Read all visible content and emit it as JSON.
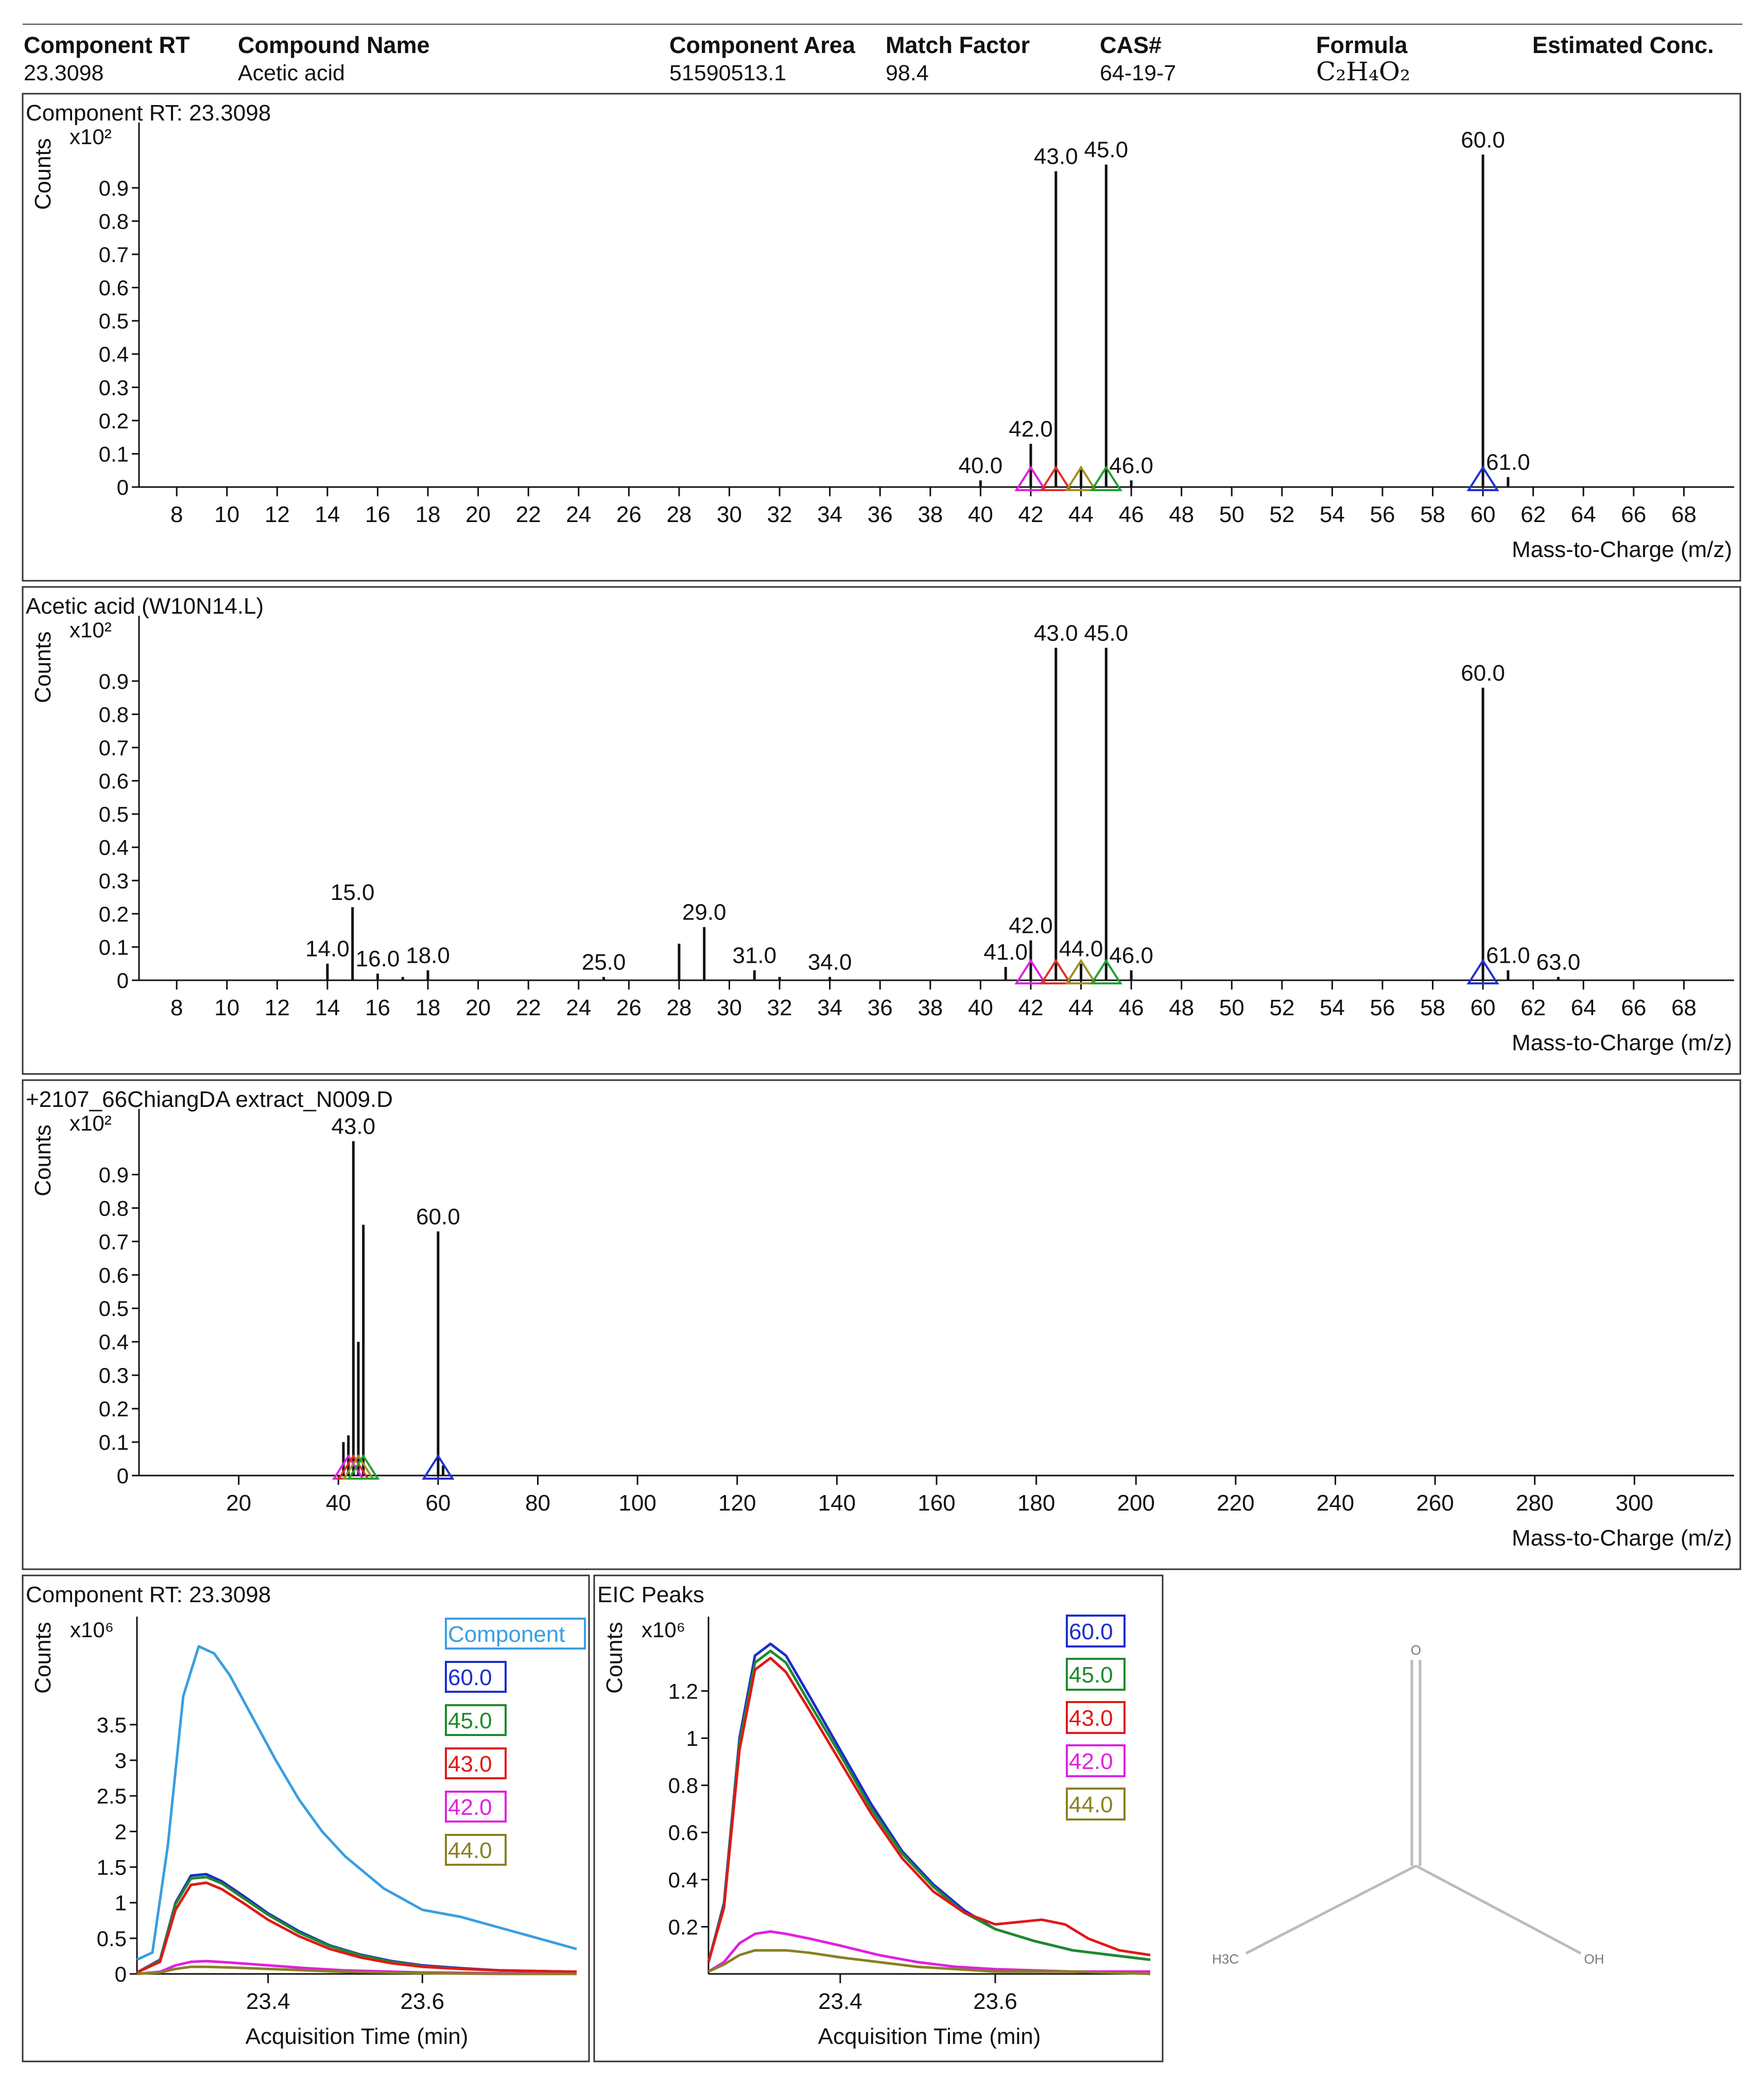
{
  "header": {
    "columns": [
      {
        "label": "Component RT",
        "value": "23.3098"
      },
      {
        "label": "Compound Name",
        "value": "Acetic acid"
      },
      {
        "label": "Component Area",
        "value": "51590513.1"
      },
      {
        "label": "Match Factor",
        "value": "98.4"
      },
      {
        "label": "CAS#",
        "value": "64-19-7"
      },
      {
        "label": "Formula",
        "value": "C₂H₄O₂"
      },
      {
        "label": "Estimated Conc.",
        "value": ""
      }
    ]
  },
  "chart_data": [
    {
      "type": "bar",
      "title": "Component RT: 23.3098",
      "xlabel": "Mass-to-Charge (m/z)",
      "ylabel": "Counts",
      "yscale_label": "x10²",
      "xlim": [
        6.5,
        70
      ],
      "ylim": [
        0,
        1.05
      ],
      "xticks": [
        8,
        10,
        12,
        14,
        16,
        18,
        20,
        22,
        24,
        26,
        28,
        30,
        32,
        34,
        36,
        38,
        40,
        42,
        44,
        46,
        48,
        50,
        52,
        54,
        56,
        58,
        60,
        62,
        64,
        66,
        68
      ],
      "yticks": [
        "0",
        "0.1",
        "0.2",
        "0.3",
        "0.4",
        "0.5",
        "0.6",
        "0.7",
        "0.8",
        "0.9"
      ],
      "peaks": [
        {
          "mz": 40.0,
          "value": 0.02,
          "label": "40.0"
        },
        {
          "mz": 42.0,
          "value": 0.13,
          "label": "42.0"
        },
        {
          "mz": 43.0,
          "value": 0.95,
          "label": "43.0"
        },
        {
          "mz": 44.0,
          "value": 0.06,
          "label": ""
        },
        {
          "mz": 45.0,
          "value": 0.97,
          "label": "45.0"
        },
        {
          "mz": 46.0,
          "value": 0.02,
          "label": "46.0"
        },
        {
          "mz": 60.0,
          "value": 1.0,
          "label": "60.0"
        },
        {
          "mz": 61.0,
          "value": 0.03,
          "label": "61.0"
        }
      ],
      "markers": [
        {
          "mz": 42,
          "color": "#e020e0"
        },
        {
          "mz": 43,
          "color": "#e03020"
        },
        {
          "mz": 44,
          "color": "#a09020"
        },
        {
          "mz": 45,
          "color": "#20a030"
        },
        {
          "mz": 60,
          "color": "#2030d0"
        }
      ]
    },
    {
      "type": "bar",
      "title": "Acetic acid (W10N14.L)",
      "xlabel": "Mass-to-Charge (m/z)",
      "ylabel": "Counts",
      "yscale_label": "x10²",
      "xlim": [
        6.5,
        70
      ],
      "ylim": [
        0,
        1.05
      ],
      "xticks": [
        8,
        10,
        12,
        14,
        16,
        18,
        20,
        22,
        24,
        26,
        28,
        30,
        32,
        34,
        36,
        38,
        40,
        42,
        44,
        46,
        48,
        50,
        52,
        54,
        56,
        58,
        60,
        62,
        64,
        66,
        68
      ],
      "yticks": [
        "0",
        "0.1",
        "0.2",
        "0.3",
        "0.4",
        "0.5",
        "0.6",
        "0.7",
        "0.8",
        "0.9"
      ],
      "peaks": [
        {
          "mz": 14.0,
          "value": 0.05,
          "label": "14.0"
        },
        {
          "mz": 15.0,
          "value": 0.22,
          "label": "15.0"
        },
        {
          "mz": 16.0,
          "value": 0.02,
          "label": "16.0"
        },
        {
          "mz": 17.0,
          "value": 0.01,
          "label": ""
        },
        {
          "mz": 18.0,
          "value": 0.03,
          "label": "18.0"
        },
        {
          "mz": 25.0,
          "value": 0.01,
          "label": "25.0"
        },
        {
          "mz": 28.0,
          "value": 0.11,
          "label": ""
        },
        {
          "mz": 29.0,
          "value": 0.16,
          "label": "29.0"
        },
        {
          "mz": 31.0,
          "value": 0.03,
          "label": "31.0"
        },
        {
          "mz": 32.0,
          "value": 0.01,
          "label": ""
        },
        {
          "mz": 34.0,
          "value": 0.01,
          "label": "34.0"
        },
        {
          "mz": 41.0,
          "value": 0.04,
          "label": "41.0"
        },
        {
          "mz": 42.0,
          "value": 0.12,
          "label": "42.0"
        },
        {
          "mz": 43.0,
          "value": 1.0,
          "label": "43.0"
        },
        {
          "mz": 44.0,
          "value": 0.05,
          "label": "44.0"
        },
        {
          "mz": 45.0,
          "value": 1.0,
          "label": "45.0"
        },
        {
          "mz": 46.0,
          "value": 0.03,
          "label": "46.0"
        },
        {
          "mz": 60.0,
          "value": 0.88,
          "label": "60.0"
        },
        {
          "mz": 61.0,
          "value": 0.03,
          "label": "61.0"
        },
        {
          "mz": 63.0,
          "value": 0.01,
          "label": "63.0"
        }
      ],
      "markers": [
        {
          "mz": 42,
          "color": "#e020e0"
        },
        {
          "mz": 43,
          "color": "#e03020"
        },
        {
          "mz": 44,
          "color": "#a09020"
        },
        {
          "mz": 45,
          "color": "#20a030"
        },
        {
          "mz": 60,
          "color": "#2030d0"
        }
      ]
    },
    {
      "type": "bar",
      "title": "+2107_66ChiangDA extract_N009.D",
      "xlabel": "Mass-to-Charge (m/z)",
      "ylabel": "Counts",
      "yscale_label": "x10²",
      "xlim": [
        0,
        320
      ],
      "ylim": [
        0,
        1.05
      ],
      "xticks": [
        20,
        40,
        60,
        80,
        100,
        120,
        140,
        160,
        180,
        200,
        220,
        240,
        260,
        280,
        300
      ],
      "yticks": [
        "0",
        "0.1",
        "0.2",
        "0.3",
        "0.4",
        "0.5",
        "0.6",
        "0.7",
        "0.8",
        "0.9"
      ],
      "peaks": [
        {
          "mz": 41.0,
          "value": 0.1,
          "label": ""
        },
        {
          "mz": 42.0,
          "value": 0.12,
          "label": ""
        },
        {
          "mz": 43.0,
          "value": 1.0,
          "label": "43.0"
        },
        {
          "mz": 44.0,
          "value": 0.4,
          "label": ""
        },
        {
          "mz": 45.0,
          "value": 0.75,
          "label": ""
        },
        {
          "mz": 60.0,
          "value": 0.73,
          "label": "60.0"
        },
        {
          "mz": 61.0,
          "value": 0.03,
          "label": ""
        }
      ],
      "markers": [
        {
          "mz": 42,
          "color": "#e020e0"
        },
        {
          "mz": 43,
          "color": "#e03020"
        },
        {
          "mz": 44,
          "color": "#a09020"
        },
        {
          "mz": 45,
          "color": "#20a030"
        },
        {
          "mz": 60,
          "color": "#2030d0"
        }
      ]
    },
    {
      "type": "line",
      "title": "Component RT: 23.3098",
      "xlabel": "Acquisition Time (min)",
      "ylabel": "Counts",
      "yscale_label": "x10⁶",
      "xlim": [
        23.23,
        23.8
      ],
      "ylim": [
        0,
        4.8
      ],
      "xticks": [
        23.4,
        23.6
      ],
      "yticks": [
        0,
        0.5,
        1,
        1.5,
        2,
        2.5,
        3,
        3.5
      ],
      "legend": [
        "Component",
        "60.0",
        "45.0",
        "43.0",
        "42.0",
        "44.0"
      ],
      "series": [
        {
          "name": "Component",
          "color": "#3a9ee0",
          "x": [
            23.23,
            23.25,
            23.27,
            23.29,
            23.31,
            23.33,
            23.35,
            23.38,
            23.41,
            23.44,
            23.47,
            23.5,
            23.55,
            23.6,
            23.65,
            23.7,
            23.75,
            23.8
          ],
          "y": [
            0.2,
            0.3,
            1.8,
            3.9,
            4.6,
            4.5,
            4.2,
            3.6,
            3.0,
            2.45,
            2.0,
            1.65,
            1.2,
            0.9,
            0.8,
            0.65,
            0.5,
            0.35
          ]
        },
        {
          "name": "60.0",
          "color": "#1a2cd0",
          "x": [
            23.23,
            23.26,
            23.28,
            23.3,
            23.32,
            23.34,
            23.37,
            23.4,
            23.44,
            23.48,
            23.52,
            23.56,
            23.6,
            23.65,
            23.7,
            23.75,
            23.8
          ],
          "y": [
            0.02,
            0.2,
            1.0,
            1.38,
            1.4,
            1.3,
            1.08,
            0.85,
            0.6,
            0.4,
            0.27,
            0.18,
            0.12,
            0.08,
            0.05,
            0.04,
            0.03
          ]
        },
        {
          "name": "45.0",
          "color": "#1e8a2a",
          "x": [
            23.23,
            23.26,
            23.28,
            23.3,
            23.32,
            23.34,
            23.37,
            23.4,
            23.44,
            23.48,
            23.52,
            23.56,
            23.6,
            23.65,
            23.7,
            23.75,
            23.8
          ],
          "y": [
            0.02,
            0.19,
            0.98,
            1.34,
            1.36,
            1.27,
            1.05,
            0.83,
            0.58,
            0.39,
            0.26,
            0.17,
            0.11,
            0.07,
            0.05,
            0.04,
            0.03
          ]
        },
        {
          "name": "43.0",
          "color": "#e01818",
          "x": [
            23.23,
            23.26,
            23.28,
            23.3,
            23.32,
            23.34,
            23.37,
            23.4,
            23.44,
            23.48,
            23.52,
            23.56,
            23.6,
            23.65,
            23.7,
            23.75,
            23.8
          ],
          "y": [
            0.02,
            0.17,
            0.9,
            1.25,
            1.28,
            1.19,
            0.98,
            0.76,
            0.53,
            0.35,
            0.23,
            0.15,
            0.1,
            0.07,
            0.05,
            0.04,
            0.03
          ]
        },
        {
          "name": "42.0",
          "color": "#e020e0",
          "x": [
            23.23,
            23.26,
            23.28,
            23.3,
            23.32,
            23.35,
            23.4,
            23.45,
            23.5,
            23.6,
            23.7,
            23.8
          ],
          "y": [
            0.0,
            0.03,
            0.12,
            0.17,
            0.18,
            0.16,
            0.12,
            0.08,
            0.05,
            0.02,
            0.01,
            0.0
          ]
        },
        {
          "name": "44.0",
          "color": "#8a8020",
          "x": [
            23.23,
            23.26,
            23.28,
            23.3,
            23.32,
            23.35,
            23.4,
            23.45,
            23.5,
            23.6,
            23.7,
            23.8
          ],
          "y": [
            0.0,
            0.02,
            0.07,
            0.1,
            0.1,
            0.09,
            0.07,
            0.05,
            0.03,
            0.01,
            0.0,
            0.0
          ]
        }
      ]
    },
    {
      "type": "line",
      "title": "EIC Peaks",
      "xlabel": "Acquisition Time (min)",
      "ylabel": "Counts",
      "yscale_label": "x10⁶",
      "xlim": [
        23.23,
        23.8
      ],
      "ylim": [
        0,
        1.45
      ],
      "xticks": [
        23.4,
        23.6
      ],
      "yticks": [
        0.2,
        0.4,
        0.6,
        0.8,
        1,
        1.2
      ],
      "legend": [
        "60.0",
        "45.0",
        "43.0",
        "42.0",
        "44.0"
      ],
      "series": [
        {
          "name": "60.0",
          "color": "#1a2cd0",
          "x": [
            23.23,
            23.25,
            23.27,
            23.29,
            23.31,
            23.33,
            23.36,
            23.4,
            23.44,
            23.48,
            23.52,
            23.56,
            23.6,
            23.65,
            23.7,
            23.75,
            23.8
          ],
          "y": [
            0.05,
            0.3,
            1.0,
            1.35,
            1.4,
            1.35,
            1.18,
            0.95,
            0.72,
            0.52,
            0.38,
            0.27,
            0.19,
            0.14,
            0.1,
            0.08,
            0.06
          ]
        },
        {
          "name": "45.0",
          "color": "#1e8a2a",
          "x": [
            23.23,
            23.25,
            23.27,
            23.29,
            23.31,
            23.33,
            23.36,
            23.4,
            23.44,
            23.48,
            23.52,
            23.56,
            23.6,
            23.65,
            23.7,
            23.75,
            23.8
          ],
          "y": [
            0.05,
            0.29,
            0.98,
            1.32,
            1.37,
            1.32,
            1.15,
            0.93,
            0.7,
            0.51,
            0.37,
            0.26,
            0.19,
            0.14,
            0.1,
            0.08,
            0.06
          ]
        },
        {
          "name": "43.0",
          "color": "#e01818",
          "x": [
            23.23,
            23.25,
            23.27,
            23.29,
            23.31,
            23.33,
            23.36,
            23.4,
            23.44,
            23.48,
            23.52,
            23.56,
            23.6,
            23.63,
            23.66,
            23.69,
            23.72,
            23.76,
            23.8
          ],
          "y": [
            0.05,
            0.28,
            0.95,
            1.29,
            1.34,
            1.28,
            1.12,
            0.9,
            0.68,
            0.49,
            0.35,
            0.26,
            0.21,
            0.22,
            0.23,
            0.21,
            0.15,
            0.1,
            0.08
          ]
        },
        {
          "name": "42.0",
          "color": "#e020e0",
          "x": [
            23.23,
            23.25,
            23.27,
            23.29,
            23.31,
            23.33,
            23.36,
            23.4,
            23.45,
            23.5,
            23.55,
            23.6,
            23.7,
            23.8
          ],
          "y": [
            0.01,
            0.05,
            0.13,
            0.17,
            0.18,
            0.17,
            0.15,
            0.12,
            0.08,
            0.05,
            0.03,
            0.02,
            0.01,
            0.01
          ]
        },
        {
          "name": "44.0",
          "color": "#8a8020",
          "x": [
            23.23,
            23.25,
            23.27,
            23.29,
            23.31,
            23.33,
            23.36,
            23.4,
            23.45,
            23.5,
            23.55,
            23.6,
            23.7,
            23.8
          ],
          "y": [
            0.01,
            0.04,
            0.08,
            0.1,
            0.1,
            0.1,
            0.09,
            0.07,
            0.05,
            0.03,
            0.02,
            0.01,
            0.01,
            0.0
          ]
        }
      ]
    }
  ],
  "structure": {
    "atoms": [
      "O",
      "H3C",
      "OH"
    ]
  }
}
